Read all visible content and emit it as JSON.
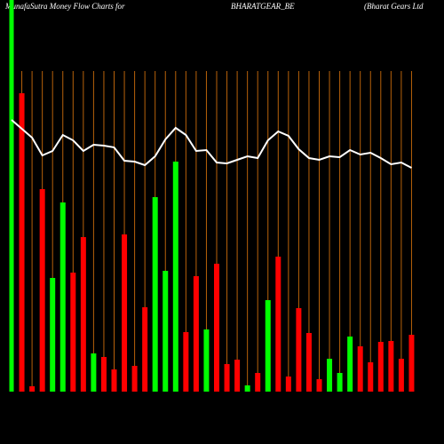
{
  "chart_data": {
    "type": "bar",
    "title": "MunafaSutra  Money Flow  Charts for",
    "symbol": "BHARATGEAR_BE",
    "company": "(Bharat Gears Ltd",
    "categories": [
      null,
      null,
      null,
      null,
      null,
      null,
      null,
      null,
      null,
      null,
      null,
      null,
      null,
      null,
      null,
      null,
      null,
      null,
      null,
      null,
      null,
      null,
      null,
      null,
      null,
      null,
      null,
      null,
      null,
      null,
      null,
      null,
      null,
      null,
      null,
      null,
      null,
      null,
      null,
      null
    ],
    "values": [
      441,
      336,
      6,
      228,
      128,
      213,
      134,
      174,
      43,
      39,
      25,
      177,
      29,
      95,
      219,
      136,
      259,
      67,
      130,
      70,
      144,
      31,
      36,
      7,
      21,
      103,
      152,
      17,
      94,
      66,
      14,
      37,
      21,
      62,
      51,
      33,
      56,
      57,
      37,
      64
    ],
    "colors": [
      "#00ff00",
      "#ff0000",
      "#ff0000",
      "#ff0000",
      "#00ff00",
      "#00ff00",
      "#ff0000",
      "#ff0000",
      "#00ff00",
      "#ff0000",
      "#ff0000",
      "#ff0000",
      "#ff0000",
      "#ff0000",
      "#00ff00",
      "#00ff00",
      "#00ff00",
      "#ff0000",
      "#ff0000",
      "#00ff00",
      "#ff0000",
      "#ff0000",
      "#ff0000",
      "#00ff00",
      "#ff0000",
      "#00ff00",
      "#ff0000",
      "#ff0000",
      "#ff0000",
      "#ff0000",
      "#ff0000",
      "#00ff00",
      "#00ff00",
      "#00ff00",
      "#ff0000",
      "#ff0000",
      "#ff0000",
      "#ff0000",
      "#ff0000",
      "#ff0000"
    ],
    "line_values": [
      306,
      296,
      286,
      266,
      271,
      289,
      283,
      271,
      278,
      277,
      275,
      260,
      259,
      255,
      265,
      284,
      297,
      289,
      271,
      272,
      258,
      257,
      261,
      265,
      263,
      283,
      293,
      288,
      273,
      263,
      261,
      265,
      264,
      272,
      267,
      269,
      263,
      256,
      258,
      252
    ],
    "line_color": "#ffffff",
    "grid_color": "#b8620a",
    "ylim": [
      0,
      441
    ]
  }
}
